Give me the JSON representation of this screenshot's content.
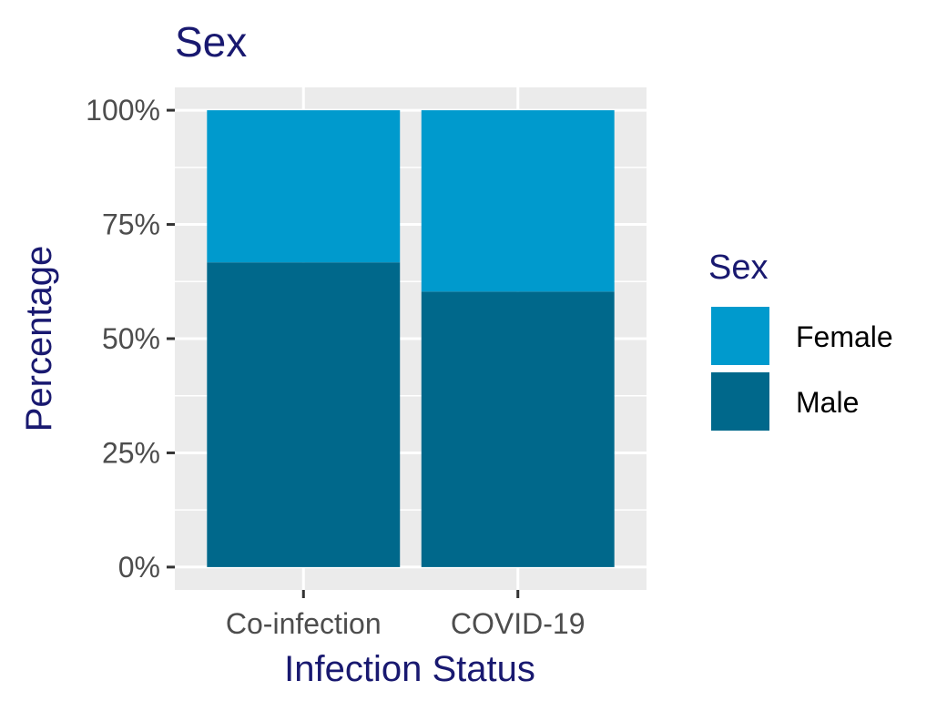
{
  "chart_data": {
    "type": "bar",
    "stacked": true,
    "title": "Sex",
    "xlabel": "Infection Status",
    "ylabel": "Percentage",
    "categories": [
      "Co-infection",
      "COVID-19"
    ],
    "series": [
      {
        "name": "Male",
        "values": [
          66.7,
          60.3
        ],
        "color": "#00688B"
      },
      {
        "name": "Female",
        "values": [
          33.3,
          39.7
        ],
        "color": "#009ACD"
      }
    ],
    "ylim": [
      -5,
      105
    ],
    "yticks": [
      0,
      25,
      50,
      75,
      100
    ],
    "ytick_labels": [
      "0%",
      "25%",
      "50%",
      "75%",
      "100%"
    ],
    "grid": true,
    "legend": {
      "title": "Sex",
      "position": "right",
      "entries": [
        {
          "label": "Female",
          "color": "#009ACD"
        },
        {
          "label": "Male",
          "color": "#00688B"
        }
      ]
    },
    "colors": {
      "panel_background": "#EBEBEB",
      "grid": "#FFFFFF",
      "title_text": "#191970",
      "tick_text": "#4D4D4D"
    }
  }
}
